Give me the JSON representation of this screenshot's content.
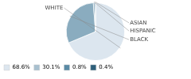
{
  "chart_data": {
    "type": "pie",
    "categories": [
      "WHITE",
      "BLACK",
      "HISPANIC",
      "ASIAN"
    ],
    "values": [
      68.6,
      30.1,
      0.8,
      0.4
    ],
    "colors": [
      "#dce6ef",
      "#8aacbf",
      "#5a8aa5",
      "#2d5f7a"
    ],
    "value_labels": [
      "68.6%",
      "30.1%",
      "0.8%",
      "0.4%"
    ],
    "legend_colors": [
      "#dce6ef",
      "#a8c0cf",
      "#5a8aa5",
      "#2d5f7a"
    ],
    "legend": "bottom"
  }
}
